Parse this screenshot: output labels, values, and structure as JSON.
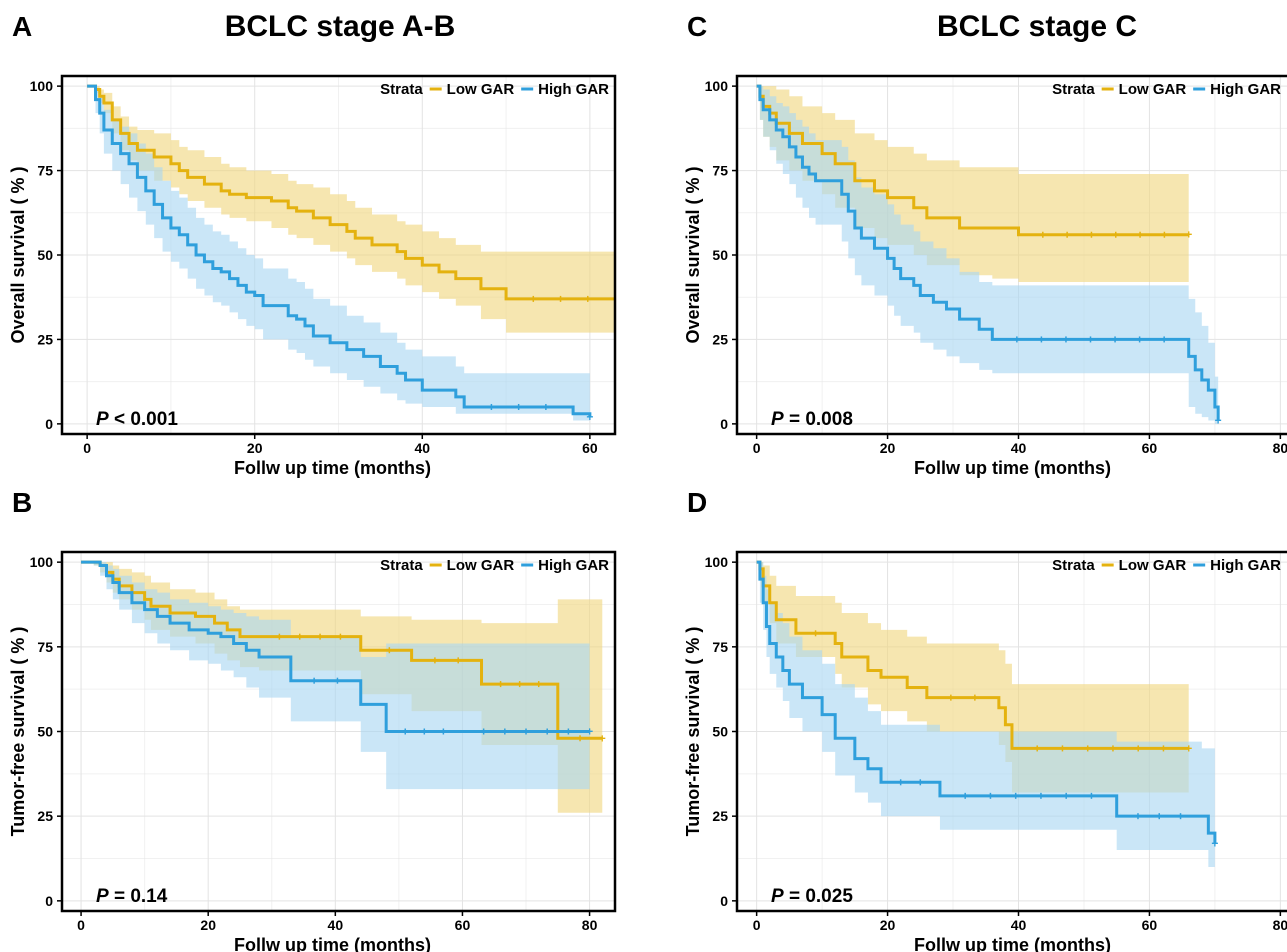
{
  "colors": {
    "low": "#e4b20f",
    "high": "#2f9fdc",
    "low_band": "#f1d77f",
    "high_band": "#a9d6f2"
  },
  "column_titles": [
    "BCLC stage A-B",
    "BCLC stage C"
  ],
  "legend": {
    "title": "Strata",
    "entries": [
      "Low GAR",
      "High GAR"
    ]
  },
  "chart_data": [
    {
      "panel": "A",
      "type": "line",
      "xlabel": "Follw up time (months)",
      "ylabel": "Overall survival ( % )",
      "xlim": [
        -3,
        63
      ],
      "ylim": [
        -3,
        103
      ],
      "xticks": [
        0,
        20,
        40,
        60
      ],
      "yticks": [
        0,
        25,
        50,
        75,
        100
      ],
      "pvalue": {
        "prefix": "P",
        "text": " < 0.001"
      },
      "series": [
        {
          "name": "Low GAR",
          "x": [
            0,
            1,
            1.5,
            2,
            3,
            4,
            5,
            6,
            8,
            10,
            11,
            12,
            14,
            16,
            17,
            19,
            22,
            24,
            25,
            27,
            29,
            31,
            32,
            34,
            37,
            38,
            40,
            42,
            44,
            47,
            50,
            63
          ],
          "y": [
            100,
            99,
            97,
            95,
            90,
            86,
            83,
            81,
            79,
            77,
            75,
            73,
            71,
            69,
            68,
            67,
            66,
            64,
            63,
            61,
            59,
            57,
            55,
            53,
            51,
            49,
            47,
            45,
            43,
            40,
            37,
            37
          ],
          "lower": [
            100,
            98,
            95,
            92,
            86,
            81,
            78,
            75,
            72,
            70,
            68,
            66,
            64,
            62,
            61,
            60,
            58,
            56,
            55,
            53,
            51,
            49,
            47,
            45,
            43,
            41,
            39,
            37,
            35,
            31,
            27,
            27
          ],
          "upper": [
            100,
            100,
            99,
            98,
            94,
            91,
            88,
            87,
            86,
            84,
            82,
            81,
            79,
            77,
            76,
            75,
            74,
            72,
            71,
            70,
            68,
            66,
            64,
            62,
            60,
            59,
            57,
            55,
            53,
            51,
            51,
            51
          ]
        },
        {
          "name": "High GAR",
          "x": [
            0,
            1,
            1.5,
            2,
            3,
            4,
            5,
            6,
            7,
            8,
            9,
            10,
            11,
            12,
            13,
            14,
            15,
            16,
            17,
            18,
            19,
            20,
            21,
            24,
            25,
            26,
            27,
            29,
            31,
            33,
            35,
            37,
            38,
            40,
            44,
            45,
            58,
            60
          ],
          "y": [
            100,
            96,
            92,
            87,
            83,
            80,
            77,
            73,
            69,
            65,
            61,
            58,
            56,
            53,
            50,
            48,
            46,
            45,
            43,
            41,
            39,
            38,
            35,
            32,
            31,
            29,
            26,
            24,
            22,
            20,
            17,
            15,
            13,
            10,
            8,
            5,
            3,
            2
          ],
          "lower": [
            100,
            92,
            86,
            80,
            75,
            71,
            67,
            63,
            59,
            55,
            51,
            48,
            46,
            43,
            40,
            38,
            36,
            35,
            33,
            31,
            29,
            28,
            25,
            22,
            21,
            19,
            17,
            15,
            13,
            11,
            9,
            7,
            6,
            5,
            3,
            3,
            1,
            0
          ],
          "upper": [
            100,
            99,
            97,
            93,
            90,
            88,
            86,
            83,
            80,
            76,
            72,
            69,
            67,
            64,
            61,
            59,
            57,
            56,
            54,
            52,
            50,
            49,
            46,
            43,
            42,
            40,
            37,
            35,
            32,
            30,
            27,
            24,
            22,
            20,
            17,
            15,
            15,
            15
          ]
        }
      ]
    },
    {
      "panel": "B",
      "type": "line",
      "xlabel": "Follw up time (months)",
      "ylabel": "Tumor-free survival ( % )",
      "xlim": [
        -3,
        84
      ],
      "ylim": [
        -3,
        103
      ],
      "xticks": [
        0,
        20,
        40,
        60,
        80
      ],
      "yticks": [
        0,
        25,
        50,
        75,
        100
      ],
      "pvalue": {
        "prefix": "P",
        "text": " = 0.14"
      },
      "series": [
        {
          "name": "Low GAR",
          "x": [
            0,
            1,
            2,
            3,
            4,
            5,
            6,
            8,
            10,
            11,
            14,
            18,
            21,
            23,
            25,
            28,
            44,
            45,
            52,
            63,
            75,
            82
          ],
          "y": [
            100,
            100,
            100,
            99,
            97,
            95,
            93,
            91,
            89,
            87,
            85,
            84,
            82,
            80,
            78,
            78,
            74,
            74,
            71,
            64,
            48,
            48
          ],
          "lower": [
            100,
            100,
            99,
            97,
            94,
            91,
            89,
            86,
            83,
            80,
            78,
            76,
            73,
            71,
            69,
            68,
            61,
            61,
            56,
            46,
            26,
            26
          ],
          "upper": [
            100,
            100,
            100,
            100,
            100,
            99,
            98,
            97,
            96,
            94,
            92,
            91,
            89,
            87,
            86,
            86,
            84,
            84,
            83,
            82,
            89,
            89
          ]
        },
        {
          "name": "High GAR",
          "x": [
            0,
            1,
            2,
            3,
            4,
            5,
            6,
            8,
            10,
            12,
            14,
            17,
            20,
            22,
            24,
            26,
            28,
            33,
            44,
            48,
            60,
            80
          ],
          "y": [
            100,
            100,
            100,
            99,
            96,
            94,
            91,
            88,
            86,
            84,
            82,
            80,
            79,
            78,
            76,
            74,
            72,
            65,
            58,
            50,
            50,
            50
          ],
          "lower": [
            100,
            100,
            99,
            96,
            92,
            89,
            86,
            82,
            79,
            76,
            74,
            71,
            70,
            68,
            66,
            63,
            60,
            53,
            44,
            33,
            33,
            33
          ],
          "upper": [
            100,
            100,
            100,
            100,
            99,
            98,
            96,
            94,
            92,
            91,
            89,
            88,
            87,
            86,
            85,
            84,
            83,
            78,
            72,
            76,
            76,
            76
          ]
        }
      ]
    },
    {
      "panel": "C",
      "type": "line",
      "xlabel": "Follw up time (months)",
      "ylabel": "Overall survival ( % )",
      "xlim": [
        -3,
        83
      ],
      "ylim": [
        -3,
        103
      ],
      "xticks": [
        0,
        20,
        40,
        60,
        80
      ],
      "yticks": [
        0,
        25,
        50,
        75,
        100
      ],
      "pvalue": {
        "prefix": "P",
        "text": " = 0.008"
      },
      "series": [
        {
          "name": "Low GAR",
          "x": [
            0,
            0.5,
            1,
            2,
            3,
            5,
            7,
            10,
            12,
            15,
            18,
            20,
            24,
            26,
            31,
            36,
            40,
            66
          ],
          "y": [
            100,
            97,
            94,
            92,
            89,
            86,
            83,
            80,
            77,
            72,
            69,
            67,
            64,
            61,
            58,
            58,
            56,
            56
          ],
          "lower": [
            100,
            90,
            85,
            82,
            78,
            75,
            72,
            68,
            64,
            58,
            55,
            53,
            50,
            47,
            44,
            43,
            42,
            42
          ],
          "upper": [
            100,
            100,
            100,
            100,
            99,
            97,
            94,
            92,
            90,
            86,
            84,
            82,
            80,
            78,
            76,
            76,
            74,
            74
          ]
        },
        {
          "name": "High GAR",
          "x": [
            0,
            0.5,
            1,
            2,
            3,
            4,
            5,
            6,
            7,
            8,
            9,
            13,
            14,
            15,
            16,
            18,
            20,
            21,
            22,
            24,
            25,
            27,
            29,
            31,
            34,
            36,
            66,
            67,
            68,
            69,
            70,
            70.5
          ],
          "y": [
            100,
            96,
            93,
            90,
            87,
            85,
            82,
            79,
            76,
            74,
            72,
            68,
            63,
            58,
            55,
            52,
            49,
            46,
            43,
            41,
            38,
            36,
            34,
            31,
            28,
            25,
            20,
            16,
            13,
            10,
            5,
            1
          ],
          "lower": [
            100,
            90,
            85,
            81,
            77,
            74,
            71,
            67,
            64,
            61,
            59,
            54,
            49,
            44,
            41,
            38,
            35,
            32,
            29,
            27,
            24,
            22,
            20,
            18,
            16,
            15,
            5,
            3,
            2,
            1,
            0,
            0
          ],
          "upper": [
            100,
            100,
            99,
            97,
            95,
            94,
            92,
            90,
            88,
            86,
            84,
            82,
            78,
            73,
            70,
            68,
            65,
            62,
            59,
            57,
            54,
            52,
            49,
            45,
            42,
            41,
            37,
            33,
            29,
            24,
            14,
            6
          ]
        }
      ]
    },
    {
      "panel": "D",
      "type": "line",
      "xlabel": "Follw up time (months)",
      "ylabel": "Tumor-free survival ( % )",
      "xlim": [
        -3,
        83
      ],
      "ylim": [
        -3,
        103
      ],
      "xticks": [
        0,
        20,
        40,
        60,
        80
      ],
      "yticks": [
        0,
        25,
        50,
        75,
        100
      ],
      "pvalue": {
        "prefix": "P",
        "text": " = 0.025"
      },
      "series": [
        {
          "name": "Low GAR",
          "x": [
            0,
            0.5,
            1,
            2,
            3,
            6,
            12,
            13,
            17,
            19,
            23,
            26,
            37,
            38,
            39,
            66
          ],
          "y": [
            100,
            98,
            93,
            88,
            83,
            79,
            76,
            72,
            68,
            66,
            63,
            60,
            57,
            52,
            45,
            45
          ],
          "lower": [
            100,
            95,
            88,
            82,
            76,
            72,
            67,
            63,
            58,
            56,
            53,
            50,
            46,
            41,
            32,
            32
          ],
          "upper": [
            100,
            100,
            99,
            96,
            93,
            90,
            88,
            85,
            82,
            80,
            78,
            76,
            74,
            70,
            64,
            64
          ]
        },
        {
          "name": "High GAR",
          "x": [
            0,
            0.5,
            1,
            1.5,
            2,
            3,
            4,
            5,
            7,
            10,
            12,
            15,
            17,
            19,
            28,
            55,
            68,
            69,
            70
          ],
          "y": [
            100,
            95,
            88,
            81,
            76,
            72,
            68,
            64,
            60,
            55,
            48,
            42,
            39,
            35,
            31,
            25,
            25,
            20,
            17
          ],
          "lower": [
            100,
            88,
            80,
            72,
            67,
            63,
            59,
            54,
            50,
            44,
            37,
            32,
            29,
            25,
            21,
            15,
            15,
            10,
            6
          ],
          "upper": [
            100,
            100,
            96,
            92,
            88,
            85,
            82,
            78,
            74,
            70,
            64,
            60,
            56,
            52,
            50,
            47,
            45,
            45,
            45
          ]
        }
      ]
    }
  ]
}
